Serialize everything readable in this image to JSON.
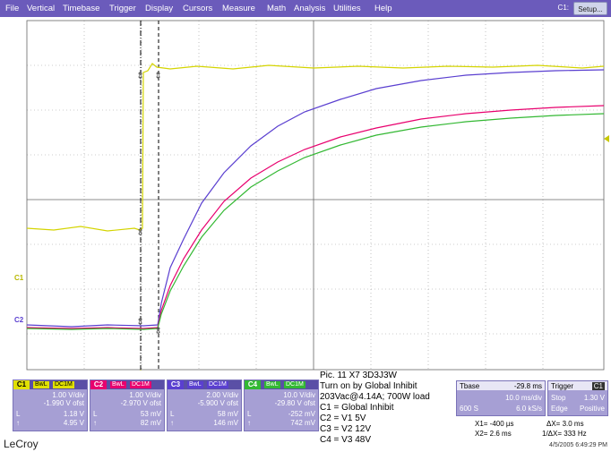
{
  "menu": {
    "items": [
      "File",
      "Vertical",
      "Timebase",
      "Trigger",
      "Display",
      "Cursors",
      "Measure",
      "Math",
      "Analysis",
      "Utilities",
      "Help"
    ],
    "channel_indicator": "C1:",
    "setup_label": "Setup..."
  },
  "markers": {
    "c1": "C1",
    "c2": "C2"
  },
  "channels": [
    {
      "id": "C1",
      "bwl": "BwL",
      "coupling": "DC1M",
      "vdiv": "1.00 V/div",
      "ofst": "-1.990 V ofst",
      "low_lbl": "L",
      "low": "1.18 V",
      "high_lbl": "↑",
      "high": "4.95 V",
      "color": "#e0e000"
    },
    {
      "id": "C2",
      "bwl": "BwL",
      "coupling": "DC1M",
      "vdiv": "1.00 V/div",
      "ofst": "-2.970 V ofst",
      "low_lbl": "L",
      "low": "53 mV",
      "high_lbl": "↑",
      "high": "82 mV",
      "color": "#e8006e"
    },
    {
      "id": "C3",
      "bwl": "BwL",
      "coupling": "DC1M",
      "vdiv": "2.00 V/div",
      "ofst": "-5.900 V ofst",
      "low_lbl": "L",
      "low": "58 mV",
      "high_lbl": "↑",
      "high": "146 mV",
      "color": "#5a3fd0"
    },
    {
      "id": "C4",
      "bwl": "BwL",
      "coupling": "DC1M",
      "vdiv": "10.0 V/div",
      "ofst": "-29.80 V ofst",
      "low_lbl": "L",
      "low": "-252 mV",
      "high_lbl": "↑",
      "high": "742 mV",
      "color": "#33b833"
    }
  ],
  "note": [
    "Pic. 11   X7 3D3J3W",
    "Turn on by Global Inhibit",
    "203Vac@4.14A; 700W load",
    "C1 = Global Inhibit",
    "C2 = V1 5V",
    "C3 = V2 12V",
    "C4 = V3 48V"
  ],
  "timebase": {
    "label": "Tbase",
    "value": "-29.8 ms",
    "per_div": "10.0 ms/div",
    "samples": "600 S",
    "rate": "6.0 kS/s"
  },
  "trigger": {
    "label": "Trigger",
    "ch": "C1",
    "mode": "Stop",
    "level": "1.30 V",
    "type": "Edge",
    "slope": "Positive"
  },
  "cursors": {
    "x1": "X1=   -400 µs",
    "dx": "ΔX=  3.0 ms",
    "x2": "X2=   2.6 ms",
    "inv": "1/ΔX=  333 Hz"
  },
  "brand": "LeCroy",
  "datetime": "4/5/2005 6:49:29 PM"
}
